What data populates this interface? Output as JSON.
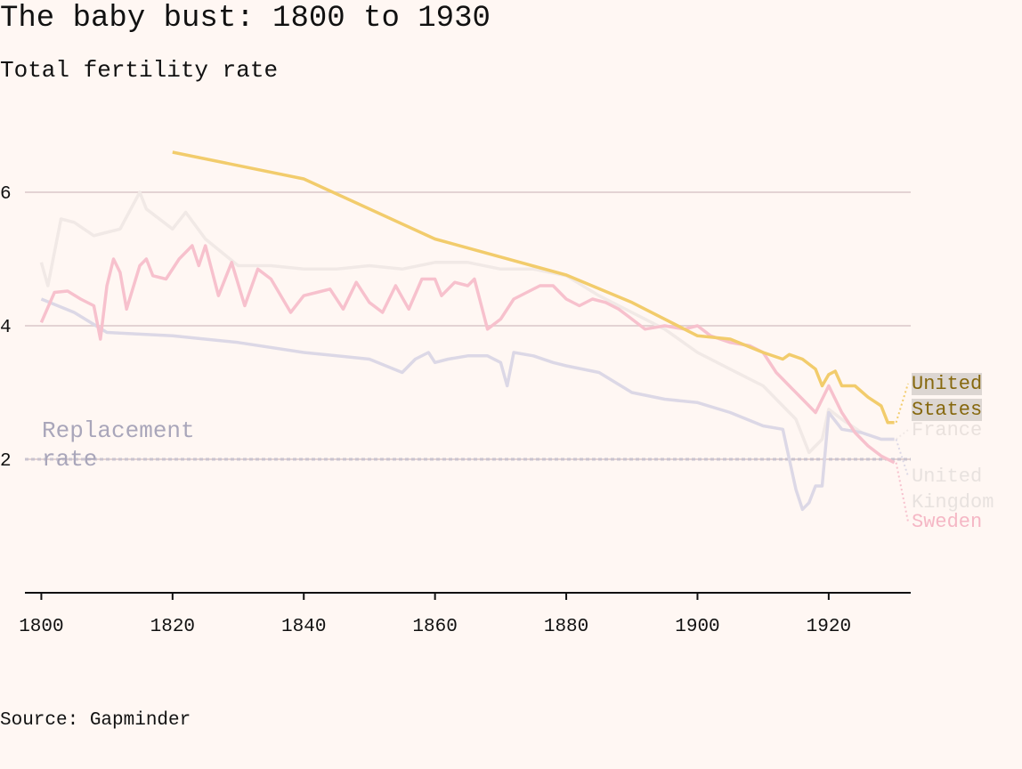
{
  "chart_data": {
    "type": "line",
    "title": "The baby bust: 1800 to 1930",
    "subtitle": "Total fertility rate",
    "source": "Source: Gapminder",
    "annotation": {
      "text": "Replacement rate",
      "value": 2
    },
    "xlim": [
      1797.5,
      1932.5
    ],
    "xticks": [
      1800,
      1820,
      1840,
      1860,
      1880,
      1900,
      1920
    ],
    "ylim": [
      0,
      7
    ],
    "yticks": [
      2,
      4,
      6
    ],
    "grid": true,
    "series": [
      {
        "name": "France",
        "color": "#f1e9e6",
        "x": [
          1800,
          1801,
          1803,
          1805,
          1808,
          1810,
          1812,
          1815,
          1816,
          1820,
          1822,
          1825,
          1830,
          1835,
          1840,
          1845,
          1850,
          1855,
          1860,
          1865,
          1870,
          1875,
          1880,
          1885,
          1890,
          1895,
          1900,
          1905,
          1910,
          1913,
          1915,
          1917,
          1919,
          1920,
          1922,
          1925,
          1928,
          1930
        ],
        "values": [
          4.95,
          4.6,
          5.6,
          5.55,
          5.35,
          5.4,
          5.45,
          6.0,
          5.75,
          5.45,
          5.7,
          5.3,
          4.9,
          4.9,
          4.85,
          4.85,
          4.9,
          4.85,
          4.95,
          4.95,
          4.85,
          4.85,
          4.75,
          4.45,
          4.2,
          3.95,
          3.6,
          3.35,
          3.1,
          2.8,
          2.6,
          2.1,
          2.3,
          2.75,
          2.6,
          2.4,
          2.3,
          2.3
        ]
      },
      {
        "name": "United Kingdom",
        "color": "#dcd8e6",
        "x": [
          1800,
          1805,
          1810,
          1820,
          1830,
          1840,
          1850,
          1855,
          1857,
          1859,
          1860,
          1862,
          1865,
          1868,
          1870,
          1871,
          1872,
          1875,
          1878,
          1880,
          1885,
          1890,
          1895,
          1900,
          1905,
          1910,
          1913,
          1915,
          1916,
          1917,
          1918,
          1919,
          1920,
          1922,
          1925,
          1928,
          1930
        ],
        "values": [
          4.4,
          4.2,
          3.9,
          3.85,
          3.75,
          3.6,
          3.5,
          3.3,
          3.5,
          3.6,
          3.45,
          3.5,
          3.55,
          3.55,
          3.45,
          3.1,
          3.6,
          3.55,
          3.45,
          3.4,
          3.3,
          3.0,
          2.9,
          2.85,
          2.7,
          2.5,
          2.45,
          1.55,
          1.25,
          1.35,
          1.6,
          1.6,
          2.7,
          2.45,
          2.4,
          2.3,
          2.3
        ]
      },
      {
        "name": "Sweden",
        "color": "#f7c1cd",
        "x": [
          1800,
          1802,
          1804,
          1806,
          1808,
          1809,
          1810,
          1811,
          1812,
          1813,
          1815,
          1816,
          1817,
          1819,
          1821,
          1823,
          1824,
          1825,
          1827,
          1829,
          1831,
          1833,
          1835,
          1838,
          1840,
          1842,
          1844,
          1846,
          1848,
          1850,
          1852,
          1854,
          1856,
          1858,
          1860,
          1861,
          1863,
          1865,
          1866,
          1868,
          1870,
          1872,
          1874,
          1876,
          1878,
          1880,
          1882,
          1884,
          1886,
          1888,
          1890,
          1892,
          1895,
          1898,
          1900,
          1902,
          1905,
          1908,
          1910,
          1912,
          1914,
          1916,
          1918,
          1920,
          1922,
          1924,
          1926,
          1928,
          1930
        ],
        "values": [
          4.05,
          4.5,
          4.52,
          4.4,
          4.3,
          3.8,
          4.6,
          5.0,
          4.8,
          4.25,
          4.9,
          5.0,
          4.75,
          4.7,
          5.0,
          5.2,
          4.9,
          5.2,
          4.45,
          4.95,
          4.3,
          4.85,
          4.7,
          4.2,
          4.45,
          4.5,
          4.55,
          4.25,
          4.65,
          4.35,
          4.2,
          4.6,
          4.25,
          4.7,
          4.7,
          4.45,
          4.65,
          4.6,
          4.7,
          3.95,
          4.1,
          4.4,
          4.5,
          4.6,
          4.6,
          4.4,
          4.3,
          4.4,
          4.35,
          4.25,
          4.1,
          3.95,
          4.0,
          3.95,
          4.0,
          3.85,
          3.75,
          3.7,
          3.6,
          3.3,
          3.1,
          2.9,
          2.7,
          3.1,
          2.7,
          2.4,
          2.2,
          2.05,
          1.95
        ]
      },
      {
        "name": "United States",
        "color": "#f2cc6c",
        "x": [
          1820,
          1840,
          1860,
          1880,
          1890,
          1900,
          1905,
          1910,
          1913,
          1914,
          1916,
          1918,
          1919,
          1920,
          1921,
          1922,
          1924,
          1926,
          1928,
          1929,
          1930
        ],
        "values": [
          6.6,
          6.2,
          5.3,
          4.76,
          4.35,
          3.85,
          3.8,
          3.6,
          3.5,
          3.57,
          3.5,
          3.35,
          3.1,
          3.27,
          3.32,
          3.1,
          3.1,
          2.93,
          2.8,
          2.55,
          2.55
        ]
      }
    ]
  }
}
